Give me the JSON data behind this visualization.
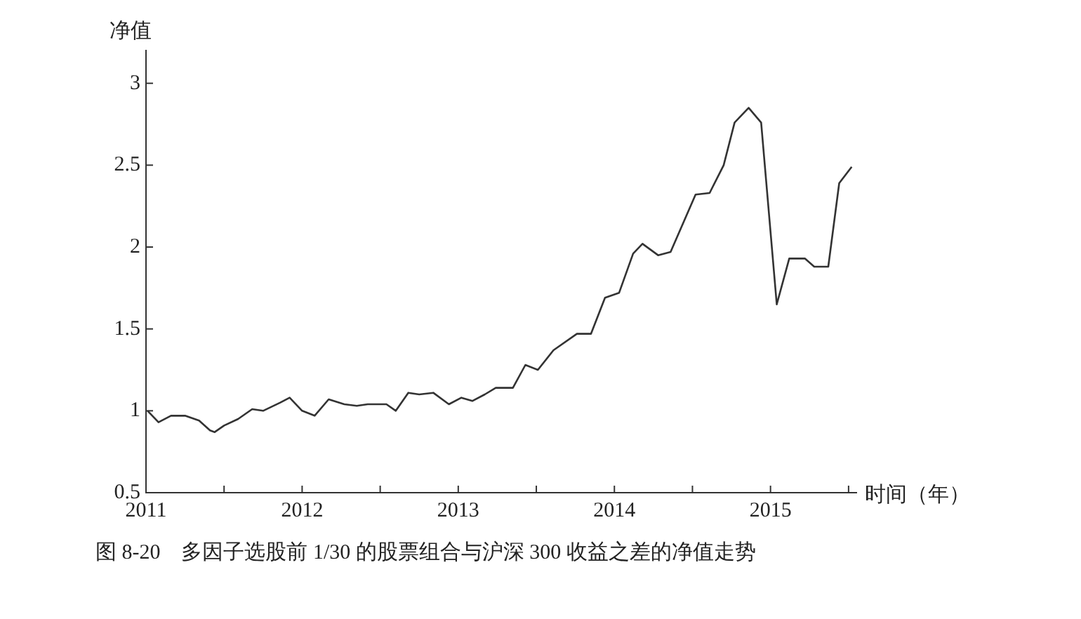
{
  "chart_data": {
    "type": "line",
    "title": "图 8-20　多因子选股前 1/30 的股票组合与沪深 300 收益之差的净值走势",
    "xlabel": "时间（年）",
    "ylabel": "净值",
    "xlim": [
      2011,
      2015.55
    ],
    "ylim": [
      0.5,
      3.2
    ],
    "xticks": [
      2011,
      {
        "value": 2011.5,
        "label": null
      },
      2012,
      {
        "value": 2012.5,
        "label": null
      },
      2013,
      {
        "value": 2013.5,
        "label": null
      },
      2014,
      {
        "value": 2014.5,
        "label": null
      },
      2015,
      {
        "value": 2015.5,
        "label": null
      }
    ],
    "yticks": [
      0.5,
      1,
      1.5,
      2,
      2.5,
      3
    ],
    "marker": "none",
    "line_style": "solid",
    "series": [
      {
        "color": "#333333",
        "x": [
          2011.01,
          2011.08,
          2011.16,
          2011.25,
          2011.34,
          2011.41,
          2011.44,
          2011.5,
          2011.59,
          2011.68,
          2011.75,
          2011.86,
          2011.92,
          2012.0,
          2012.08,
          2012.17,
          2012.27,
          2012.35,
          2012.42,
          2012.54,
          2012.6,
          2012.68,
          2012.75,
          2012.84,
          2012.94,
          2013.02,
          2013.09,
          2013.17,
          2013.24,
          2013.35,
          2013.43,
          2013.51,
          2013.61,
          2013.76,
          2013.85,
          2013.94,
          2014.03,
          2014.12,
          2014.18,
          2014.28,
          2014.36,
          2014.52,
          2014.61,
          2014.7,
          2014.77,
          2014.86,
          2014.94,
          2015.04,
          2015.12,
          2015.22,
          2015.28,
          2015.37,
          2015.44,
          2015.52
        ],
        "values": [
          1.0,
          0.93,
          0.97,
          0.97,
          0.94,
          0.88,
          0.87,
          0.91,
          0.95,
          1.01,
          1.0,
          1.05,
          1.08,
          1.0,
          0.97,
          1.07,
          1.04,
          1.03,
          1.04,
          1.04,
          1.0,
          1.11,
          1.1,
          1.11,
          1.04,
          1.08,
          1.06,
          1.1,
          1.14,
          1.14,
          1.28,
          1.25,
          1.37,
          1.47,
          1.47,
          1.69,
          1.72,
          1.96,
          2.02,
          1.95,
          1.97,
          2.32,
          2.33,
          2.5,
          2.76,
          2.85,
          2.76,
          1.65,
          1.93,
          1.93,
          1.88,
          1.88,
          2.39,
          2.49
        ]
      }
    ]
  }
}
